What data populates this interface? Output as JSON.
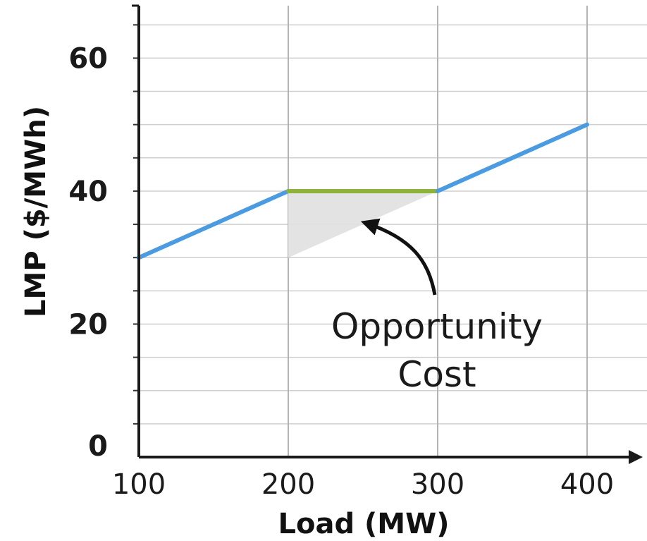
{
  "chart_data": {
    "type": "line",
    "title": "",
    "xlabel": "Load (MW)",
    "ylabel": "LMP ($/MWh)",
    "xlim": [
      100,
      430
    ],
    "ylim": [
      0,
      68
    ],
    "x_ticks": [
      100,
      200,
      300,
      400
    ],
    "y_ticks": [
      0,
      20,
      40,
      60
    ],
    "grid": true,
    "series": [
      {
        "color": "#4a9be0",
        "x": [
          100,
          200
        ],
        "y": [
          30,
          40
        ]
      },
      {
        "color": "#8db33a",
        "x": [
          200,
          300
        ],
        "y": [
          40,
          40
        ]
      },
      {
        "color": "#4a9be0",
        "x": [
          300,
          400
        ],
        "y": [
          40,
          50
        ]
      }
    ],
    "shaded_region": {
      "color": "#e0e0e0",
      "vertices": [
        [
          200,
          40
        ],
        [
          300,
          40
        ],
        [
          200,
          30
        ]
      ]
    },
    "annotation": {
      "lines": [
        "Opportunity",
        "Cost"
      ],
      "points_to": [
        250,
        35
      ]
    }
  }
}
